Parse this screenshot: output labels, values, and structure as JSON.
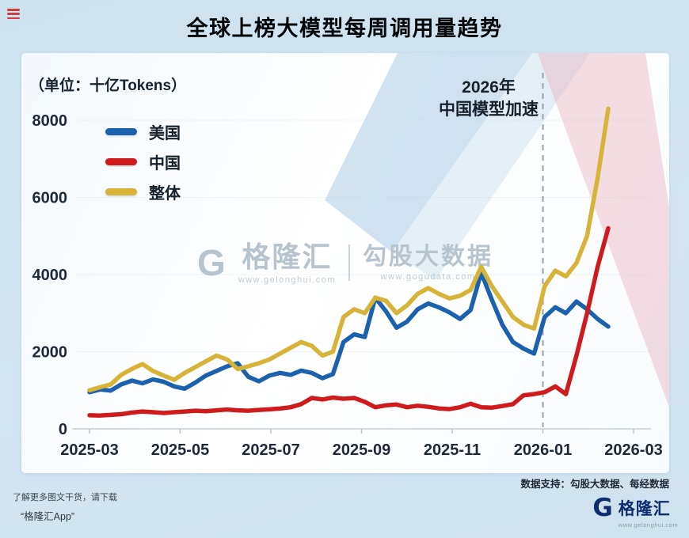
{
  "title": "全球上榜大模型每周调用量趋势",
  "chart": {
    "unit_label": "（单位：十亿Tokens）"
  },
  "chart_data": {
    "type": "line",
    "title": "全球上榜大模型每周调用量趋势",
    "unit": "十亿Tokens",
    "x_ticks": [
      "2025-03",
      "2025-05",
      "2025-07",
      "2025-09",
      "2025-11",
      "2026-01",
      "2026-03"
    ],
    "y_ticks": [
      0,
      2000,
      4000,
      6000,
      8000
    ],
    "ylim": [
      0,
      8600
    ],
    "grid": "off",
    "legend_position": "top-left",
    "x_description": "weekly points from 2025-03 to mid 2026-02",
    "annotation": {
      "line1": "2026年",
      "line2": "中国模型加速",
      "month_index": 10,
      "at_x": "2026-01",
      "style": "vertical-dashed-line"
    },
    "series": [
      {
        "name": "美国",
        "color": "#1b61ad",
        "values": [
          950,
          1020,
          990,
          1150,
          1250,
          1180,
          1280,
          1220,
          1100,
          1040,
          1200,
          1380,
          1500,
          1620,
          1700,
          1350,
          1230,
          1380,
          1450,
          1400,
          1510,
          1450,
          1310,
          1420,
          2250,
          2450,
          2380,
          3400,
          3050,
          2620,
          2780,
          3100,
          3250,
          3150,
          3020,
          2850,
          3080,
          4050,
          3350,
          2700,
          2250,
          2080,
          1950,
          2900,
          3150,
          3000,
          3300,
          3100,
          2850,
          2650
        ]
      },
      {
        "name": "中国",
        "color": "#cf1b1e",
        "values": [
          350,
          345,
          360,
          380,
          420,
          450,
          430,
          410,
          430,
          450,
          470,
          455,
          480,
          500,
          480,
          470,
          490,
          505,
          525,
          560,
          640,
          800,
          760,
          810,
          780,
          800,
          700,
          560,
          610,
          630,
          560,
          600,
          570,
          530,
          510,
          560,
          650,
          560,
          550,
          590,
          640,
          870,
          900,
          950,
          1100,
          900,
          1900,
          3000,
          4200,
          5200
        ]
      },
      {
        "name": "整体",
        "color": "#d7b437",
        "values": [
          1000,
          1080,
          1150,
          1400,
          1550,
          1680,
          1500,
          1380,
          1270,
          1450,
          1600,
          1750,
          1900,
          1800,
          1550,
          1620,
          1700,
          1800,
          1950,
          2100,
          2250,
          2150,
          1900,
          2000,
          2900,
          3100,
          3000,
          3400,
          3320,
          3000,
          3200,
          3500,
          3650,
          3500,
          3380,
          3450,
          3600,
          4200,
          3700,
          3300,
          2900,
          2700,
          2600,
          3700,
          4100,
          3950,
          4300,
          5000,
          6500,
          8300
        ]
      }
    ]
  },
  "watermark": {
    "g_glyph": "G",
    "brand": "格隆汇",
    "brand_url": "www.gelonghui.com",
    "partner": "勾股大数据",
    "partner_url": "www.gogudata.com"
  },
  "support_text": "数据支持：勾股大数据、每经数据",
  "footer": {
    "left_line1": "了解更多图文干货，请下载",
    "left_line2": "“格隆汇App”",
    "logo_g": "G",
    "logo_brand": "格隆汇",
    "logo_sub": "www.gelonghui.com"
  }
}
